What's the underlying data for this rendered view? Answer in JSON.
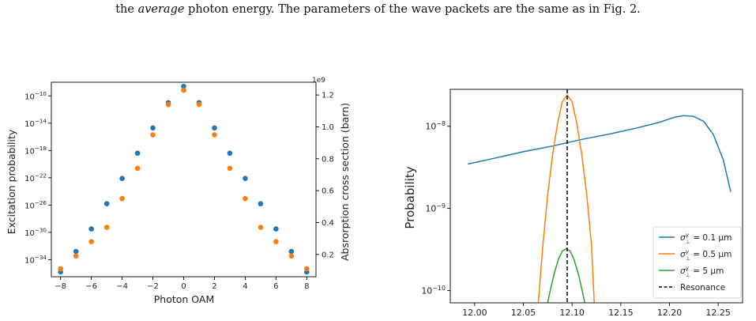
{
  "caption": {
    "pre": "the ",
    "emph": "average",
    "post": " photon energy. The parameters of the wave packets are the same as in Fig. 2."
  },
  "colors": {
    "blue": "#1f77b4",
    "orange": "#ff7f0e",
    "green": "#2ca02c",
    "black": "#000000"
  },
  "chart_data": [
    {
      "type": "scatter",
      "xlabel": "Photon OAM",
      "ylabel": "Excitation probability",
      "ylabel_right": "Absrorption cross section (barn)",
      "right_axis_multiplier": "1e9",
      "x_ticks": [
        -8,
        -6,
        -4,
        -2,
        0,
        2,
        4,
        6,
        8
      ],
      "x_tick_labels": [
        "−8",
        "−6",
        "−4",
        "−2",
        "0",
        "2",
        "4",
        "6",
        "8"
      ],
      "xlim": [
        -8.6,
        8.6
      ],
      "y_scale": "log",
      "y_tick_exponents": [
        -34,
        -30,
        -26,
        -22,
        -18,
        -14,
        -10
      ],
      "y_tick_labels": [
        {
          "base": "10",
          "exp": "−34"
        },
        {
          "base": "10",
          "exp": "−30"
        },
        {
          "base": "10",
          "exp": "−26"
        },
        {
          "base": "10",
          "exp": "−22"
        },
        {
          "base": "10",
          "exp": "−18"
        },
        {
          "base": "10",
          "exp": "−14"
        },
        {
          "base": "10",
          "exp": "−10"
        }
      ],
      "ylim_log10": [
        -36.5,
        -8.0
      ],
      "y2_ticks": [
        0.2,
        0.4,
        0.6,
        0.8,
        1.0,
        1.2
      ],
      "y2_tick_labels": [
        "0.2",
        "0.4",
        "0.6",
        "0.8",
        "1.0",
        "1.2"
      ],
      "y2lim": [
        0.06,
        1.28
      ],
      "grid": false,
      "series": [
        {
          "axis": "left",
          "color": "blue",
          "x": [
            -8,
            -7,
            -6,
            -5,
            -4,
            -3,
            -2,
            -1,
            0,
            1,
            2,
            3,
            4,
            5,
            6,
            7,
            8
          ],
          "log10_values": [
            -35.8,
            -32.8,
            -29.5,
            -25.8,
            -22.1,
            -18.4,
            -14.7,
            -11.0,
            -8.6,
            -11.0,
            -14.7,
            -18.4,
            -22.1,
            -25.8,
            -29.5,
            -32.8,
            -35.8
          ]
        },
        {
          "axis": "right",
          "color": "orange",
          "x": [
            -8,
            -7,
            -6,
            -5,
            -4,
            -3,
            -2,
            -1,
            0,
            1,
            2,
            3,
            4,
            5,
            6,
            7,
            8
          ],
          "values": [
            0.11,
            0.19,
            0.28,
            0.37,
            0.55,
            0.74,
            0.95,
            1.14,
            1.23,
            1.14,
            0.95,
            0.74,
            0.55,
            0.37,
            0.28,
            0.19,
            0.11
          ]
        }
      ]
    },
    {
      "type": "line",
      "xlabel": "",
      "ylabel": "Probability",
      "x_ticks": [
        12.0,
        12.05,
        12.1,
        12.15,
        12.2,
        12.25
      ],
      "x_tick_labels": [
        "12.00",
        "12.05",
        "12.10",
        "12.15",
        "12.20",
        "12.25"
      ],
      "xlim": [
        11.975,
        12.275
      ],
      "y_scale": "log",
      "y_tick_exponents": [
        -10,
        -9,
        -8
      ],
      "y_tick_labels": [
        {
          "base": "10",
          "exp": "−10"
        },
        {
          "base": "10",
          "exp": "−9"
        },
        {
          "base": "10",
          "exp": "−8"
        }
      ],
      "ylim_log10": [
        -10.15,
        -7.55
      ],
      "resonance_x": 12.095,
      "legend_position": "bottom-right",
      "legend": [
        {
          "sym": "σ",
          "sup": "γ",
          "sub": "⊥",
          "rest": " = 0.1 μm",
          "color": "blue",
          "style": "solid"
        },
        {
          "sym": "σ",
          "sup": "γ",
          "sub": "⊥",
          "rest": " = 0.5 μm",
          "color": "orange",
          "style": "solid"
        },
        {
          "sym": "σ",
          "sup": "γ",
          "sub": "⊥",
          "rest": " = 5 μm",
          "color": "green",
          "style": "solid"
        },
        {
          "text": "Resonance",
          "color": "black",
          "style": "dashed"
        }
      ],
      "series": [
        {
          "color": "blue",
          "x": [
            11.993,
            12.02,
            12.05,
            12.08,
            12.11,
            12.14,
            12.17,
            12.19,
            12.205,
            12.215,
            12.225,
            12.235,
            12.245,
            12.255,
            12.263
          ],
          "log10_values": [
            -8.46,
            -8.39,
            -8.31,
            -8.24,
            -8.16,
            -8.09,
            -8.01,
            -7.95,
            -7.89,
            -7.87,
            -7.88,
            -7.94,
            -8.1,
            -8.4,
            -8.8
          ]
        },
        {
          "color": "orange",
          "x": [
            12.065,
            12.07,
            12.075,
            12.08,
            12.085,
            12.09,
            12.095,
            12.1,
            12.105,
            12.11,
            12.115,
            12.12,
            12.123
          ],
          "log10_values": [
            -10.2,
            -9.45,
            -8.83,
            -8.35,
            -7.97,
            -7.7,
            -7.62,
            -7.7,
            -7.97,
            -8.35,
            -8.83,
            -9.45,
            -10.2
          ]
        },
        {
          "color": "green",
          "x": [
            12.074,
            12.078,
            12.082,
            12.086,
            12.09,
            12.094,
            12.098,
            12.102,
            12.106,
            12.11,
            12.114
          ],
          "log10_values": [
            -10.2,
            -9.98,
            -9.78,
            -9.62,
            -9.52,
            -9.49,
            -9.52,
            -9.62,
            -9.78,
            -9.98,
            -10.2
          ]
        }
      ]
    }
  ]
}
